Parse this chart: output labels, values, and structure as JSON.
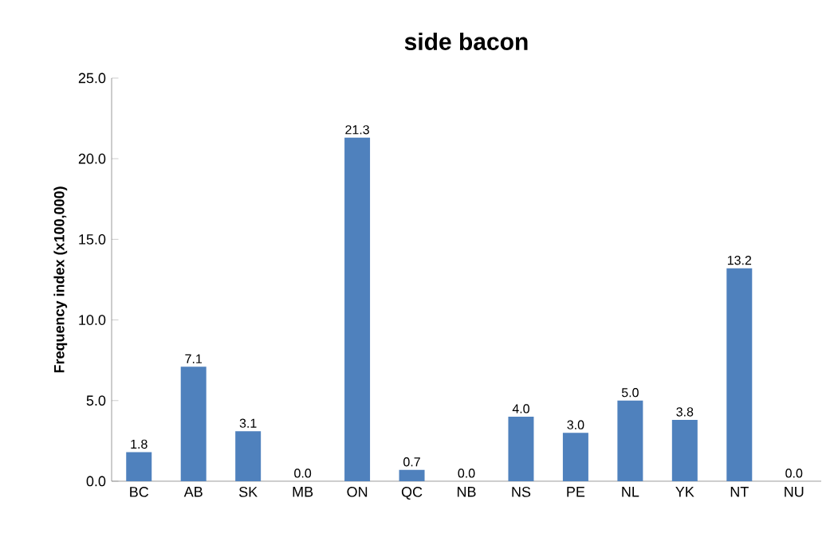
{
  "chart_data": {
    "type": "bar",
    "title": "side bacon",
    "ylabel": "Frequency index (x100,000)",
    "categories": [
      "BC",
      "AB",
      "SK",
      "MB",
      "ON",
      "QC",
      "NB",
      "NS",
      "PE",
      "NL",
      "YK",
      "NT",
      "NU"
    ],
    "values": [
      1.8,
      7.1,
      3.1,
      0.0,
      21.3,
      0.7,
      0.0,
      4.0,
      3.0,
      5.0,
      3.8,
      13.2,
      0.0
    ],
    "value_labels": [
      "1.8",
      "7.1",
      "3.1",
      "0.0",
      "21.3",
      "0.7",
      "0.0",
      "4.0",
      "3.0",
      "5.0",
      "3.8",
      "13.2",
      "0.0"
    ],
    "color": "#4f81bd",
    "ylim": [
      0,
      25
    ],
    "yticks": [
      {
        "value": 0,
        "label": "0.0"
      },
      {
        "value": 5,
        "label": "5.0"
      },
      {
        "value": 10,
        "label": "10.0"
      },
      {
        "value": 15,
        "label": "15.0"
      },
      {
        "value": 20,
        "label": "20.0"
      },
      {
        "value": 25,
        "label": "25.0"
      }
    ],
    "grid": false
  }
}
